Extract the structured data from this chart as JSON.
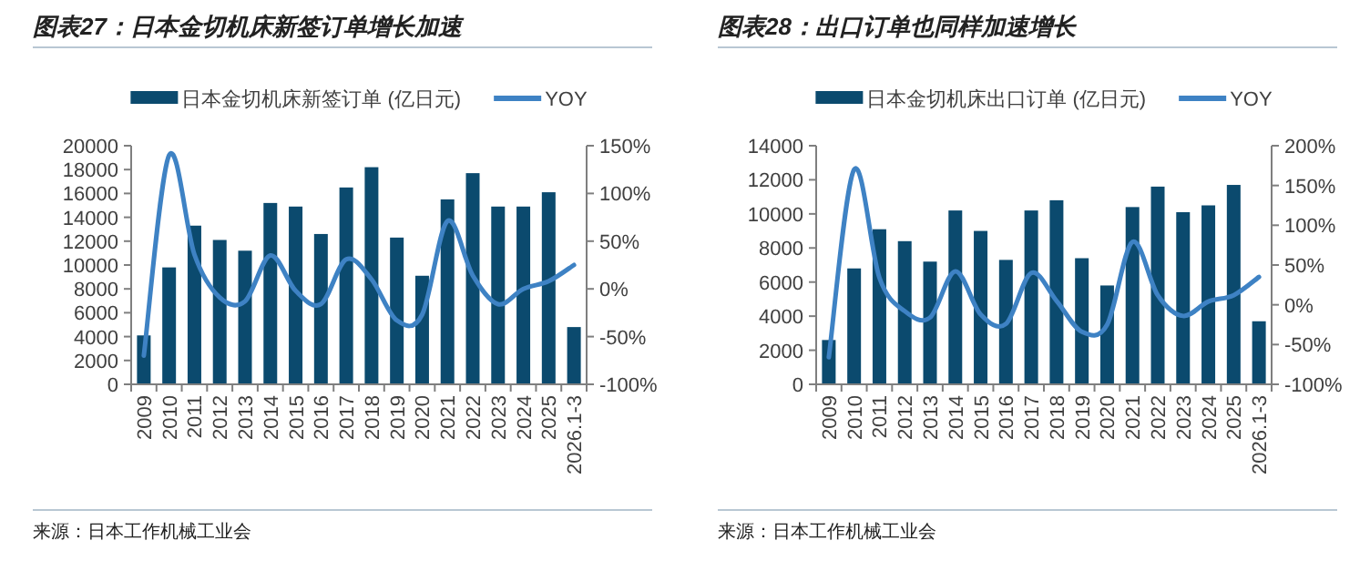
{
  "chart_data": [
    {
      "type": "bar",
      "title": "图表27：日本金切机床新签订单增长加速",
      "legend": "top",
      "categories": [
        "2009",
        "2010",
        "2011",
        "2012",
        "2013",
        "2014",
        "2015",
        "2016",
        "2017",
        "2018",
        "2019",
        "2020",
        "2021",
        "2022",
        "2023",
        "2024",
        "2025",
        "2026.1-3"
      ],
      "series": [
        {
          "name": "日本金切机床新签订单 (亿日元)",
          "color": "#0b4a6e",
          "values": [
            4100,
            9800,
            13300,
            12100,
            11200,
            15200,
            14900,
            12600,
            16500,
            18200,
            12300,
            9100,
            15500,
            17700,
            14900,
            14900,
            16100,
            4800
          ]
        },
        {
          "name": "YOY",
          "type": "line",
          "axis": "y2",
          "color": "#3e82c4",
          "values": [
            -70,
            140,
            36,
            -9,
            -13,
            35,
            -2,
            -16,
            31,
            10,
            -33,
            -27,
            71,
            14,
            -16,
            0,
            8,
            25
          ]
        }
      ],
      "ylim": [
        0,
        20000
      ],
      "yticks": [
        0,
        2000,
        4000,
        6000,
        8000,
        10000,
        12000,
        14000,
        16000,
        18000,
        20000
      ],
      "y2lim": [
        -100,
        150
      ],
      "y2ticks": [
        {
          "value": -100,
          "label": "-100%"
        },
        {
          "value": -50,
          "label": "-50%"
        },
        {
          "value": 0,
          "label": "0%"
        },
        {
          "value": 50,
          "label": "50%"
        },
        {
          "value": 100,
          "label": "100%"
        },
        {
          "value": 150,
          "label": "150%"
        }
      ],
      "annotations": [
        "来源：日本工作机械工业会"
      ]
    },
    {
      "type": "bar",
      "title": "图表28：出口订单也同样加速增长",
      "legend": "top",
      "categories": [
        "2009",
        "2010",
        "2011",
        "2012",
        "2013",
        "2014",
        "2015",
        "2016",
        "2017",
        "2018",
        "2019",
        "2020",
        "2021",
        "2022",
        "2023",
        "2024",
        "2025",
        "2026.1-3"
      ],
      "series": [
        {
          "name": "日本金切机床出口订单 (亿日元)",
          "color": "#0b4a6e",
          "values": [
            2600,
            6800,
            9100,
            8400,
            7200,
            10200,
            9000,
            7300,
            10200,
            10800,
            7400,
            5800,
            10400,
            11600,
            10100,
            10500,
            11700,
            3700
          ]
        },
        {
          "name": "YOY",
          "type": "line",
          "axis": "y2",
          "color": "#3e82c4",
          "values": [
            -66,
            170,
            34,
            -8,
            -16,
            42,
            -12,
            -24,
            40,
            5,
            -34,
            -25,
            79,
            12,
            -14,
            4,
            12,
            35
          ]
        }
      ],
      "ylim": [
        0,
        14000
      ],
      "yticks": [
        0,
        2000,
        4000,
        6000,
        8000,
        10000,
        12000,
        14000
      ],
      "y2lim": [
        -100,
        200
      ],
      "y2ticks": [
        {
          "value": -100,
          "label": "-100%"
        },
        {
          "value": -50,
          "label": "-50%"
        },
        {
          "value": 0,
          "label": "0%"
        },
        {
          "value": 50,
          "label": "50%"
        },
        {
          "value": 100,
          "label": "100%"
        },
        {
          "value": 150,
          "label": "150%"
        },
        {
          "value": 200,
          "label": "200%"
        }
      ],
      "annotations": [
        "来源：日本工作机械工业会"
      ]
    }
  ]
}
